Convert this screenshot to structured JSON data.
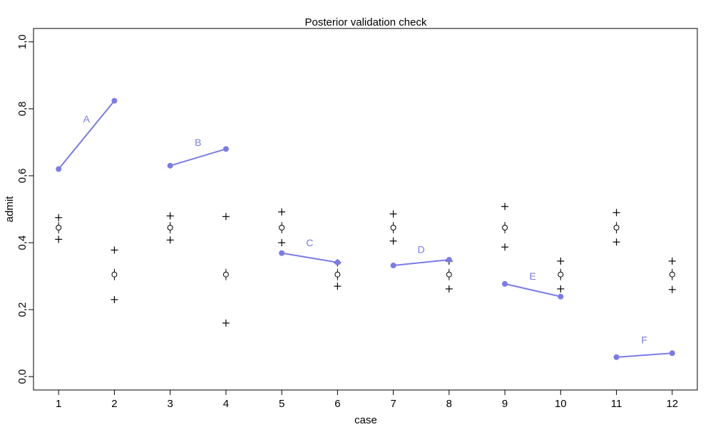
{
  "chart_data": {
    "type": "scatter",
    "title": "Posterior validation check",
    "xlabel": "case",
    "ylabel": "admit",
    "xlim": [
      0.55,
      12.45
    ],
    "ylim": [
      -0.04,
      1.04
    ],
    "x_ticks": [
      1,
      2,
      3,
      4,
      5,
      6,
      7,
      8,
      9,
      10,
      11,
      12
    ],
    "y_ticks": [
      0.0,
      0.2,
      0.4,
      0.6,
      0.8,
      1.0
    ],
    "y_tick_labels": [
      "0,0",
      "0,2",
      "0,4",
      "0,6",
      "0,8",
      "1,0"
    ],
    "grid": false,
    "observed_color": "#7b7be8",
    "observed": {
      "x": [
        1,
        2,
        3,
        4,
        5,
        6,
        7,
        8,
        9,
        10,
        11,
        12
      ],
      "y": [
        0.62,
        0.824,
        0.63,
        0.68,
        0.369,
        0.341,
        0.332,
        0.349,
        0.277,
        0.239,
        0.058,
        0.07
      ]
    },
    "groups": [
      {
        "label": "A",
        "cases": [
          1,
          2
        ],
        "label_x": 1.5,
        "label_y": 0.77
      },
      {
        "label": "B",
        "cases": [
          3,
          4
        ],
        "label_x": 3.5,
        "label_y": 0.7
      },
      {
        "label": "C",
        "cases": [
          5,
          6
        ],
        "label_x": 5.5,
        "label_y": 0.4
      },
      {
        "label": "D",
        "cases": [
          7,
          8
        ],
        "label_x": 7.5,
        "label_y": 0.38
      },
      {
        "label": "E",
        "cases": [
          9,
          10
        ],
        "label_x": 9.5,
        "label_y": 0.3
      },
      {
        "label": "F",
        "cases": [
          11,
          12
        ],
        "label_x": 11.5,
        "label_y": 0.11
      }
    ],
    "predicted": {
      "x": [
        1,
        2,
        3,
        4,
        5,
        6,
        7,
        8,
        9,
        10,
        11,
        12
      ],
      "mean": [
        0.445,
        0.305,
        0.445,
        0.305,
        0.445,
        0.305,
        0.445,
        0.305,
        0.445,
        0.305,
        0.445,
        0.305
      ],
      "interval_low": [
        0.41,
        0.23,
        0.408,
        0.16,
        0.4,
        0.27,
        0.405,
        0.262,
        0.387,
        0.262,
        0.402,
        0.26
      ],
      "interval_high": [
        0.475,
        0.378,
        0.48,
        0.478,
        0.492,
        0.34,
        0.486,
        0.345,
        0.508,
        0.345,
        0.49,
        0.345
      ]
    }
  }
}
